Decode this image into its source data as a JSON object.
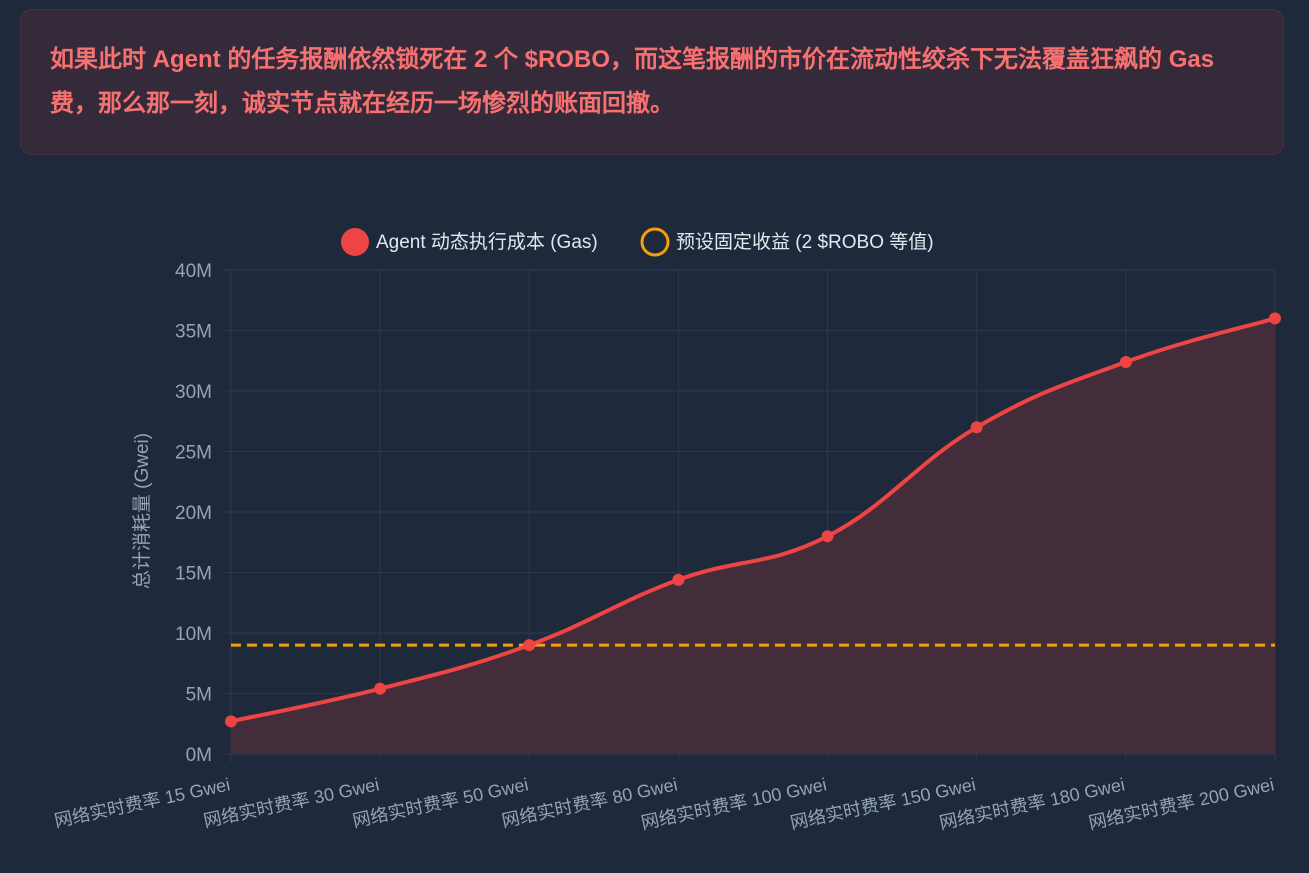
{
  "callout": {
    "text": "如果此时 Agent 的任务报酬依然锁死在 2 个 $ROBO，而这笔报酬的市价在流动性绞杀下无法覆盖狂飙的 Gas 费，那么那一刻，诚实节点就在经历一场惨烈的账面回撤。"
  },
  "colors": {
    "background": "#1e293b",
    "cost_line": "#ef4444",
    "cost_fill": "#4a2e3c",
    "revenue_line": "#f59e0b",
    "grid": "#334155",
    "text": "#94a3b8"
  },
  "chart_data": {
    "type": "line",
    "title": "",
    "xlabel": "",
    "ylabel": "总计消耗量 (Gwei)",
    "categories": [
      "网络实时费率 15 Gwei",
      "网络实时费率 30 Gwei",
      "网络实时费率 50 Gwei",
      "网络实时费率 80 Gwei",
      "网络实时费率 100 Gwei",
      "网络实时费率 150 Gwei",
      "网络实时费率 180 Gwei",
      "网络实时费率 200 Gwei"
    ],
    "series": [
      {
        "name": "Agent 动态执行成本 (Gas)",
        "values": [
          2700000,
          5400000,
          9000000,
          14400000,
          18000000,
          27000000,
          32400000,
          36000000
        ],
        "style": "solid-filled",
        "legend_icon": "filled-circle"
      },
      {
        "name": "预设固定收益 (2 $ROBO 等值)",
        "values": [
          9000000,
          9000000,
          9000000,
          9000000,
          9000000,
          9000000,
          9000000,
          9000000
        ],
        "style": "dashed",
        "legend_icon": "hollow-circle"
      }
    ],
    "ylim": [
      0,
      40000000
    ],
    "yticks": [
      {
        "value": 0,
        "label": "0M"
      },
      {
        "value": 5000000,
        "label": "5M"
      },
      {
        "value": 10000000,
        "label": "10M"
      },
      {
        "value": 15000000,
        "label": "15M"
      },
      {
        "value": 20000000,
        "label": "20M"
      },
      {
        "value": 25000000,
        "label": "25M"
      },
      {
        "value": 30000000,
        "label": "30M"
      },
      {
        "value": 35000000,
        "label": "35M"
      },
      {
        "value": 40000000,
        "label": "40M"
      }
    ],
    "grid": true,
    "legend_position": "top-center"
  }
}
